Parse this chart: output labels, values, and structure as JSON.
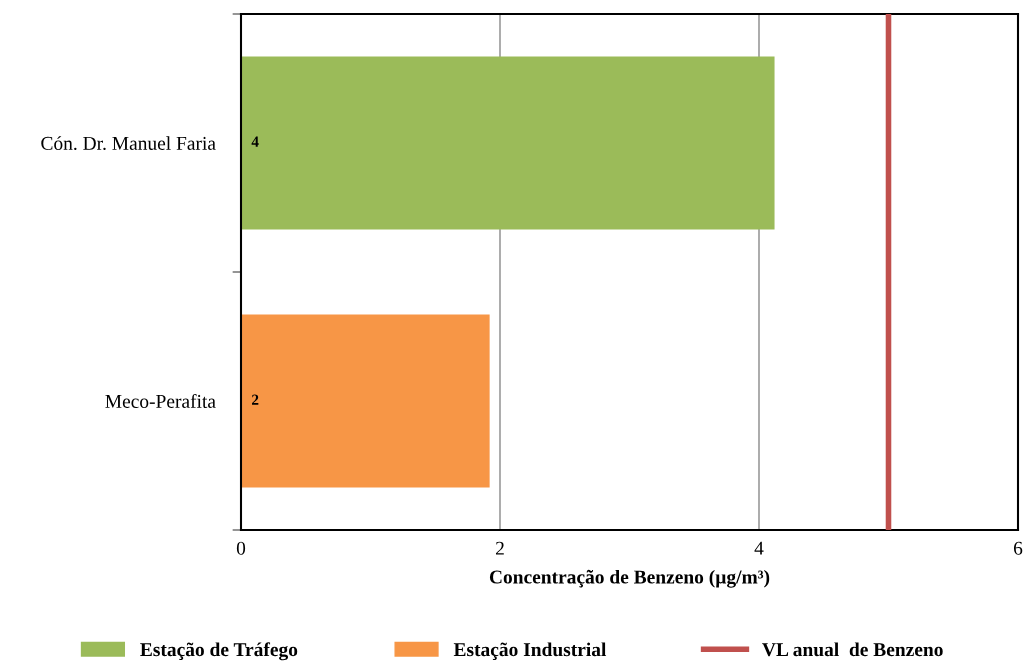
{
  "chart_data": {
    "type": "bar",
    "orientation": "horizontal",
    "categories": [
      "Cón. Dr. Manuel Faria",
      "Meco-Perafita"
    ],
    "series": [
      {
        "name": "Estação de Tráfego",
        "color": "#9bbb59",
        "values": [
          4.12,
          null
        ],
        "value_labels": [
          "4",
          null
        ]
      },
      {
        "name": "Estação Industrial",
        "color": "#f79646",
        "values": [
          null,
          1.92
        ],
        "value_labels": [
          null,
          "2"
        ]
      }
    ],
    "xlabel": "Concentração de Benzeno (µg/m³)",
    "xlim": [
      0,
      6
    ],
    "xticks": [
      0,
      2,
      4,
      6
    ],
    "ref_lines": [
      {
        "axis": "x",
        "value": 5,
        "label": "VL anual  de Benzeno",
        "color": "#c0504d"
      }
    ],
    "grid": "x",
    "legend": "bottom"
  }
}
